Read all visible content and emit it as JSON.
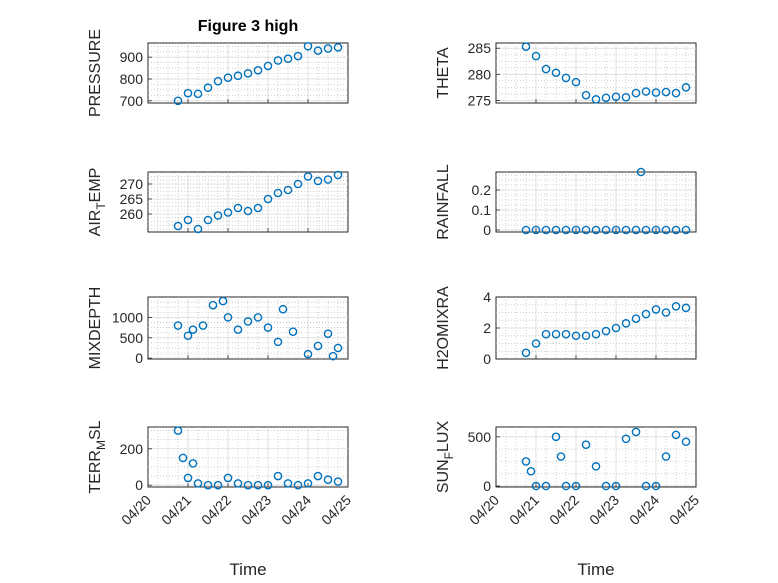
{
  "title": "Figure 3 high",
  "colors": {
    "marker": "#0072bd",
    "axis": "#262626"
  },
  "chart_data": [
    {
      "type": "scatter",
      "ylabel": "PRESSURE",
      "ylabel_sub": "",
      "ylabel_tail": "",
      "title": "Figure 3 high",
      "xticks": [],
      "ylim": [
        690,
        965
      ],
      "yticks": [
        700,
        800,
        900
      ],
      "x": [
        "2011-04-20 18:00",
        "2011-04-21 00:00",
        "2011-04-21 06:00",
        "2011-04-21 12:00",
        "2011-04-21 18:00",
        "2011-04-22 00:00",
        "2011-04-22 06:00",
        "2011-04-22 12:00",
        "2011-04-22 18:00",
        "2011-04-23 00:00",
        "2011-04-23 06:00",
        "2011-04-23 12:00",
        "2011-04-23 18:00",
        "2011-04-24 00:00",
        "2011-04-24 06:00",
        "2011-04-24 12:00",
        "2011-04-24 18:00"
      ],
      "y": [
        700,
        735,
        732,
        760,
        790,
        806,
        815,
        826,
        840,
        860,
        885,
        893,
        905,
        950,
        930,
        940,
        945
      ]
    },
    {
      "type": "scatter",
      "ylabel": "THETA",
      "ylabel_sub": "",
      "ylabel_tail": "",
      "xticks": [],
      "ylim": [
        274.5,
        286
      ],
      "yticks": [
        275,
        280,
        285
      ],
      "x": [
        "2011-04-20 18:00",
        "2011-04-21 00:00",
        "2011-04-21 06:00",
        "2011-04-21 12:00",
        "2011-04-21 18:00",
        "2011-04-22 00:00",
        "2011-04-22 06:00",
        "2011-04-22 12:00",
        "2011-04-22 18:00",
        "2011-04-23 00:00",
        "2011-04-23 06:00",
        "2011-04-23 12:00",
        "2011-04-23 18:00",
        "2011-04-24 00:00",
        "2011-04-24 06:00",
        "2011-04-24 12:00",
        "2011-04-24 18:00"
      ],
      "y": [
        285.3,
        283.5,
        281,
        280.3,
        279.3,
        278.5,
        276,
        275.2,
        275.5,
        275.7,
        275.6,
        276.4,
        276.7,
        276.5,
        276.6,
        276.4,
        277.5
      ]
    },
    {
      "type": "scatter",
      "ylabel": "AIR",
      "ylabel_sub": "T",
      "ylabel_tail": "EMP",
      "xticks": [],
      "ylim": [
        254,
        274
      ],
      "yticks": [
        260,
        265,
        270
      ],
      "x": [
        "2011-04-20 18:00",
        "2011-04-21 00:00",
        "2011-04-21 06:00",
        "2011-04-21 12:00",
        "2011-04-21 18:00",
        "2011-04-22 00:00",
        "2011-04-22 06:00",
        "2011-04-22 12:00",
        "2011-04-22 18:00",
        "2011-04-23 00:00",
        "2011-04-23 06:00",
        "2011-04-23 12:00",
        "2011-04-23 18:00",
        "2011-04-24 00:00",
        "2011-04-24 06:00",
        "2011-04-24 12:00",
        "2011-04-24 18:00"
      ],
      "y": [
        256,
        258,
        255,
        258,
        259.5,
        260.5,
        262,
        261,
        262,
        265,
        267,
        268,
        270,
        272.5,
        271,
        271.5,
        273
      ]
    },
    {
      "type": "scatter",
      "ylabel": "RAINFALL",
      "ylabel_sub": "",
      "ylabel_tail": "",
      "xticks": [],
      "ylim": [
        -0.01,
        0.29
      ],
      "yticks": [
        0,
        0.1,
        0.2
      ],
      "x": [
        "2011-04-20 18:00",
        "2011-04-21 00:00",
        "2011-04-21 06:00",
        "2011-04-21 12:00",
        "2011-04-21 18:00",
        "2011-04-22 00:00",
        "2011-04-22 06:00",
        "2011-04-22 12:00",
        "2011-04-22 18:00",
        "2011-04-23 00:00",
        "2011-04-23 06:00",
        "2011-04-23 12:00",
        "2011-04-23 18:00",
        "2011-04-24 00:00",
        "2011-04-24 06:00",
        "2011-04-24 12:00",
        "2011-04-24 18:00",
        "2011-04-23 15:00"
      ],
      "y": [
        0,
        0,
        0,
        0,
        0,
        0,
        0,
        0,
        0,
        0,
        0,
        0,
        0,
        0,
        0,
        0,
        0,
        0.29
      ]
    },
    {
      "type": "scatter",
      "ylabel": "MIXDEPTH",
      "ylabel_sub": "",
      "ylabel_tail": "",
      "xticks": [],
      "ylim": [
        -20,
        1500
      ],
      "yticks": [
        0,
        500,
        1000
      ],
      "x": [
        "2011-04-20 18:00",
        "2011-04-21 00:00",
        "2011-04-21 03:00",
        "2011-04-21 09:00",
        "2011-04-21 15:00",
        "2011-04-21 21:00",
        "2011-04-22 00:00",
        "2011-04-22 06:00",
        "2011-04-22 12:00",
        "2011-04-22 18:00",
        "2011-04-23 00:00",
        "2011-04-23 06:00",
        "2011-04-23 09:00",
        "2011-04-23 15:00",
        "2011-04-24 00:00",
        "2011-04-24 06:00",
        "2011-04-24 12:00",
        "2011-04-24 15:00",
        "2011-04-24 18:00"
      ],
      "y": [
        800,
        550,
        700,
        800,
        1300,
        1400,
        1000,
        700,
        900,
        1000,
        750,
        400,
        1200,
        650,
        100,
        300,
        600,
        50,
        250
      ]
    },
    {
      "type": "scatter",
      "ylabel": "H2OMIXRA",
      "ylabel_sub": "",
      "ylabel_tail": "",
      "xticks": [],
      "ylim": [
        0,
        4
      ],
      "yticks": [
        0,
        2,
        4
      ],
      "x": [
        "2011-04-20 18:00",
        "2011-04-21 00:00",
        "2011-04-21 06:00",
        "2011-04-21 12:00",
        "2011-04-21 18:00",
        "2011-04-22 00:00",
        "2011-04-22 06:00",
        "2011-04-22 12:00",
        "2011-04-22 18:00",
        "2011-04-23 00:00",
        "2011-04-23 06:00",
        "2011-04-23 12:00",
        "2011-04-23 18:00",
        "2011-04-24 00:00",
        "2011-04-24 06:00",
        "2011-04-24 12:00",
        "2011-04-24 18:00"
      ],
      "y": [
        0.4,
        1,
        1.6,
        1.6,
        1.6,
        1.5,
        1.5,
        1.6,
        1.8,
        2,
        2.3,
        2.6,
        2.9,
        3.2,
        3,
        3.4,
        3.3
      ]
    },
    {
      "type": "scatter",
      "ylabel": "TERR",
      "ylabel_sub": "M",
      "ylabel_tail": "SL",
      "xticks": [
        "04/20",
        "04/21",
        "04/22",
        "04/23",
        "04/24",
        "04/25"
      ],
      "xlabel": "Time",
      "ylim": [
        -10,
        320
      ],
      "yticks": [
        0,
        200
      ],
      "x": [
        "2011-04-20 18:00",
        "2011-04-20 21:00",
        "2011-04-21 00:00",
        "2011-04-21 03:00",
        "2011-04-21 06:00",
        "2011-04-21 12:00",
        "2011-04-21 18:00",
        "2011-04-22 00:00",
        "2011-04-22 06:00",
        "2011-04-22 12:00",
        "2011-04-22 18:00",
        "2011-04-23 00:00",
        "2011-04-23 06:00",
        "2011-04-23 12:00",
        "2011-04-23 18:00",
        "2011-04-24 00:00",
        "2011-04-24 06:00",
        "2011-04-24 12:00",
        "2011-04-24 18:00"
      ],
      "y": [
        300,
        150,
        40,
        120,
        10,
        0,
        0,
        40,
        10,
        0,
        0,
        0,
        50,
        10,
        0,
        10,
        50,
        30,
        20
      ]
    },
    {
      "type": "scatter",
      "ylabel": "SUN",
      "ylabel_sub": "F",
      "ylabel_tail": "LUX",
      "xticks": [
        "04/20",
        "04/21",
        "04/22",
        "04/23",
        "04/24",
        "04/25"
      ],
      "xlabel": "Time",
      "ylim": [
        -10,
        600
      ],
      "yticks": [
        0,
        500
      ],
      "x": [
        "2011-04-20 18:00",
        "2011-04-20 21:00",
        "2011-04-21 00:00",
        "2011-04-21 06:00",
        "2011-04-21 12:00",
        "2011-04-21 15:00",
        "2011-04-21 18:00",
        "2011-04-22 00:00",
        "2011-04-22 06:00",
        "2011-04-22 12:00",
        "2011-04-22 18:00",
        "2011-04-23 00:00",
        "2011-04-23 06:00",
        "2011-04-23 12:00",
        "2011-04-23 18:00",
        "2011-04-24 00:00",
        "2011-04-24 06:00",
        "2011-04-24 12:00",
        "2011-04-24 18:00"
      ],
      "y": [
        250,
        150,
        0,
        0,
        500,
        300,
        0,
        0,
        420,
        200,
        0,
        0,
        480,
        550,
        0,
        0,
        300,
        520,
        450
      ]
    }
  ]
}
